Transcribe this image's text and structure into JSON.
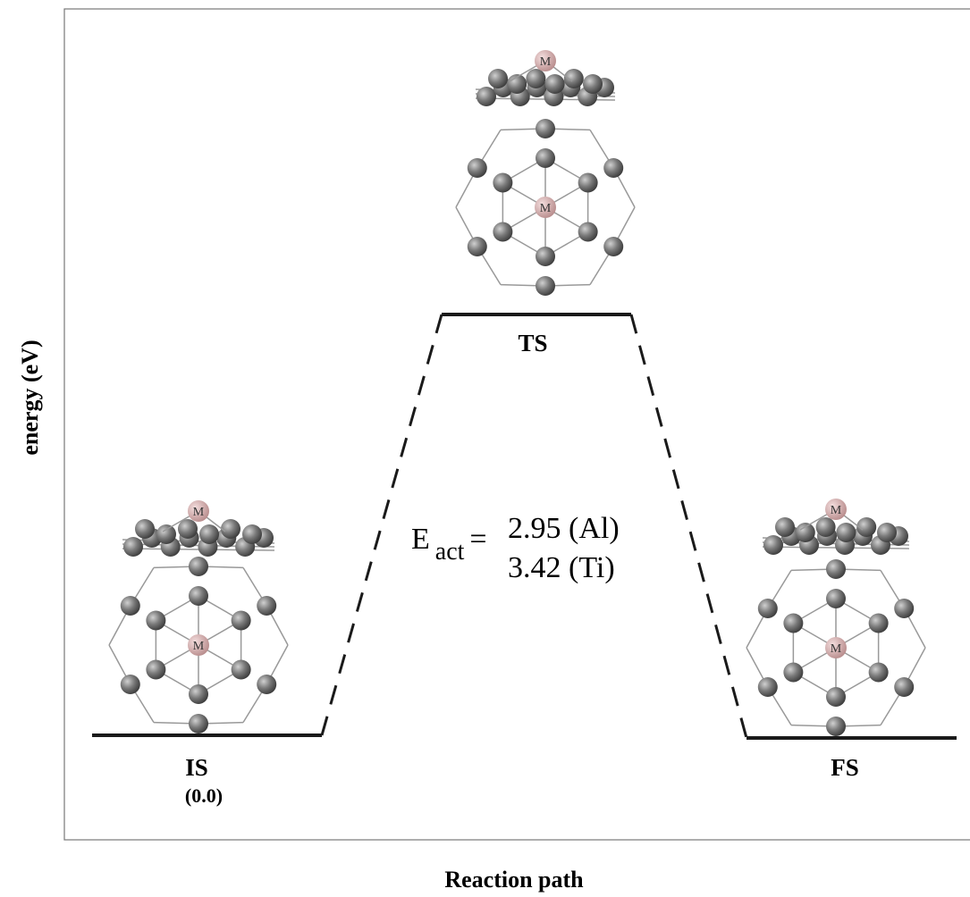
{
  "axes": {
    "y_label": "energy (eV)",
    "x_label": "Reaction path"
  },
  "states": [
    {
      "label": "IS",
      "energy": "(0.0)"
    },
    {
      "label": "TS"
    },
    {
      "label": "FS"
    }
  ],
  "activation": {
    "symbol": "E",
    "subscript": "act",
    "equals": "=",
    "values": [
      "2.95 (Al)",
      "3.42 (Ti)"
    ]
  },
  "metal_label": "M"
}
